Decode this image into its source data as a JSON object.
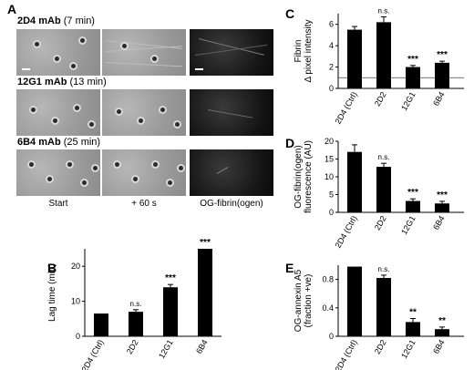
{
  "panels": {
    "A": {
      "letter": "A",
      "rows": [
        {
          "bold": "2D4 mAb",
          "time": "(7 min)"
        },
        {
          "bold": "12G1 mAb",
          "time": "(13 min)"
        },
        {
          "bold": "6B4 mAb",
          "time": "(25 min)"
        }
      ],
      "columns": [
        "Start",
        "+ 60 s",
        "OG-fibrin(ogen)"
      ]
    },
    "B": {
      "letter": "B"
    },
    "C": {
      "letter": "C"
    },
    "D": {
      "letter": "D"
    },
    "E": {
      "letter": "E"
    }
  },
  "chart_data": [
    {
      "id": "B",
      "type": "bar",
      "categories": [
        "2D4 (Ctrl)",
        "2D2",
        "12G1",
        "6B4"
      ],
      "values": [
        6.5,
        7.0,
        14.0,
        25.0
      ],
      "errors": [
        0,
        0.6,
        0.8,
        0
      ],
      "significance": [
        "",
        "n.s.",
        "***",
        "***"
      ],
      "ylabel": "Lag time (min)",
      "ylim": [
        0,
        25
      ],
      "yticks": [
        "0",
        "10",
        "20"
      ],
      "ytick_values": [
        0,
        10,
        20
      ]
    },
    {
      "id": "C",
      "type": "bar",
      "categories": [
        "2D4 (Ctrl)",
        "2D2",
        "12G1",
        "6B4"
      ],
      "values": [
        5.5,
        6.2,
        2.0,
        2.4
      ],
      "errors": [
        0.3,
        0.5,
        0.15,
        0.15
      ],
      "significance": [
        "",
        "n.s.",
        "***",
        "***"
      ],
      "ylabel": "Fibrin\nΔ pixel intensity",
      "ylim": [
        0,
        7
      ],
      "yticks": [
        "0",
        "2",
        "4",
        "6"
      ],
      "ytick_values": [
        0,
        2,
        4,
        6
      ],
      "reference_line": 1.0
    },
    {
      "id": "D",
      "type": "bar",
      "categories": [
        "2D4 (Ctrl)",
        "2D2",
        "12G1",
        "6B4"
      ],
      "values": [
        17,
        12.8,
        3.2,
        2.5
      ],
      "errors": [
        2.0,
        1.0,
        0.6,
        0.6
      ],
      "significance": [
        "",
        "n.s.",
        "***",
        "***"
      ],
      "ylabel": "OG-fibrin(ogen)\nfluorescence (AU)",
      "ylim": [
        0,
        20
      ],
      "yticks": [
        "0",
        "5",
        "10",
        "15",
        "20"
      ],
      "ytick_values": [
        0,
        5,
        10,
        15,
        20
      ]
    },
    {
      "id": "E",
      "type": "bar",
      "categories": [
        "2D4 (Ctrl)",
        "2D2",
        "12G1",
        "6B4"
      ],
      "values": [
        0.98,
        0.82,
        0.2,
        0.1
      ],
      "errors": [
        0,
        0.04,
        0.05,
        0.03
      ],
      "significance": [
        "",
        "n.s.",
        "**",
        "**"
      ],
      "ylabel": "OG-annexin A5\n(fraction +ve)",
      "ylim": [
        0,
        1.0
      ],
      "yticks": [
        "0",
        "0.4",
        "0.8"
      ],
      "ytick_values": [
        0,
        0.4,
        0.8
      ]
    }
  ]
}
